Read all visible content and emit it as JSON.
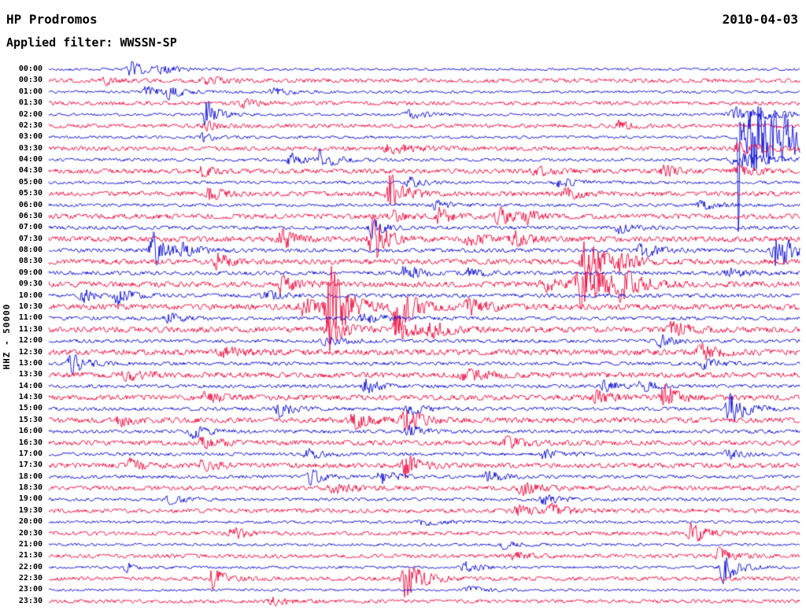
{
  "header": {
    "station": "HP Prodromos",
    "date": "2010-04-03",
    "filter_label": "Applied filter: WWSSN-SP"
  },
  "y_axis_label": "HHZ - 50000",
  "colors": {
    "blue": "#0a0ad2",
    "red": "#ee0a3e",
    "text": "#000000",
    "background": "#ffffff"
  },
  "chart_data": {
    "type": "helicorder",
    "station": "HP Prodromos",
    "date": "2010-04-03",
    "filter": "WWSSN-SP",
    "channel_scale": "HHZ - 50000",
    "minutes_per_line": 30,
    "rows": [
      {
        "label": "00:00",
        "color": "blue",
        "noise": 1.4
      },
      {
        "label": "00:30",
        "color": "red",
        "noise": 2.2
      },
      {
        "label": "01:00",
        "color": "blue",
        "noise": 1.5
      },
      {
        "label": "01:30",
        "color": "red",
        "noise": 2.2
      },
      {
        "label": "02:00",
        "color": "blue",
        "noise": 1.5
      },
      {
        "label": "02:30",
        "color": "red",
        "noise": 2.2
      },
      {
        "label": "03:00",
        "color": "blue",
        "noise": 1.6
      },
      {
        "label": "03:30",
        "color": "red",
        "noise": 2.4
      },
      {
        "label": "04:00",
        "color": "blue",
        "noise": 1.7
      },
      {
        "label": "04:30",
        "color": "red",
        "noise": 2.6
      },
      {
        "label": "05:00",
        "color": "blue",
        "noise": 1.7
      },
      {
        "label": "05:30",
        "color": "red",
        "noise": 2.6
      },
      {
        "label": "06:00",
        "color": "blue",
        "noise": 1.8
      },
      {
        "label": "06:30",
        "color": "red",
        "noise": 2.8
      },
      {
        "label": "07:00",
        "color": "blue",
        "noise": 2.0
      },
      {
        "label": "07:30",
        "color": "red",
        "noise": 3.0
      },
      {
        "label": "08:00",
        "color": "blue",
        "noise": 2.2
      },
      {
        "label": "08:30",
        "color": "red",
        "noise": 3.0
      },
      {
        "label": "09:00",
        "color": "blue",
        "noise": 2.2
      },
      {
        "label": "09:30",
        "color": "red",
        "noise": 3.2
      },
      {
        "label": "10:00",
        "color": "blue",
        "noise": 2.2
      },
      {
        "label": "10:30",
        "color": "red",
        "noise": 3.2
      },
      {
        "label": "11:00",
        "color": "blue",
        "noise": 2.0
      },
      {
        "label": "11:30",
        "color": "red",
        "noise": 3.2
      },
      {
        "label": "12:00",
        "color": "blue",
        "noise": 2.0
      },
      {
        "label": "12:30",
        "color": "red",
        "noise": 3.2
      },
      {
        "label": "13:00",
        "color": "blue",
        "noise": 2.0
      },
      {
        "label": "13:30",
        "color": "red",
        "noise": 3.0
      },
      {
        "label": "14:00",
        "color": "blue",
        "noise": 2.0
      },
      {
        "label": "14:30",
        "color": "red",
        "noise": 3.0
      },
      {
        "label": "15:00",
        "color": "blue",
        "noise": 2.0
      },
      {
        "label": "15:30",
        "color": "red",
        "noise": 3.0
      },
      {
        "label": "16:00",
        "color": "blue",
        "noise": 2.0
      },
      {
        "label": "16:30",
        "color": "red",
        "noise": 2.8
      },
      {
        "label": "17:00",
        "color": "blue",
        "noise": 1.9
      },
      {
        "label": "17:30",
        "color": "red",
        "noise": 2.8
      },
      {
        "label": "18:00",
        "color": "blue",
        "noise": 1.9
      },
      {
        "label": "18:30",
        "color": "red",
        "noise": 2.6
      },
      {
        "label": "19:00",
        "color": "blue",
        "noise": 1.8
      },
      {
        "label": "19:30",
        "color": "red",
        "noise": 2.4
      },
      {
        "label": "20:00",
        "color": "blue",
        "noise": 1.6
      },
      {
        "label": "20:30",
        "color": "red",
        "noise": 2.2
      },
      {
        "label": "21:00",
        "color": "blue",
        "noise": 1.5
      },
      {
        "label": "21:30",
        "color": "red",
        "noise": 2.2
      },
      {
        "label": "22:00",
        "color": "blue",
        "noise": 1.5
      },
      {
        "label": "22:30",
        "color": "red",
        "noise": 2.2
      },
      {
        "label": "23:00",
        "color": "blue",
        "noise": 1.4
      },
      {
        "label": "23:30",
        "color": "red",
        "noise": 2.0
      }
    ],
    "events_format": [
      "row_index",
      "x_fraction_along_line",
      "amplitude_px",
      "width_px"
    ],
    "events": [
      [
        0,
        0.11,
        9,
        8
      ],
      [
        0,
        0.15,
        4,
        10
      ],
      [
        1,
        0.075,
        5,
        6
      ],
      [
        1,
        0.21,
        4,
        12
      ],
      [
        2,
        0.13,
        7,
        6
      ],
      [
        2,
        0.16,
        8,
        7
      ],
      [
        2,
        0.3,
        4,
        10
      ],
      [
        3,
        0.26,
        4,
        8
      ],
      [
        4,
        0.21,
        18,
        6
      ],
      [
        4,
        0.48,
        5,
        10
      ],
      [
        4,
        0.92,
        9,
        20
      ],
      [
        5,
        0.21,
        5,
        8
      ],
      [
        5,
        0.76,
        6,
        6
      ],
      [
        6,
        0.205,
        6,
        6
      ],
      [
        6,
        0.918,
        150,
        1.2
      ],
      [
        6,
        0.94,
        42,
        16
      ],
      [
        6,
        0.975,
        14,
        30
      ],
      [
        7,
        0.455,
        6,
        12
      ],
      [
        7,
        0.92,
        6,
        14
      ],
      [
        8,
        0.322,
        8,
        7
      ],
      [
        8,
        0.361,
        12,
        8
      ],
      [
        8,
        0.92,
        8,
        18
      ],
      [
        9,
        0.205,
        5,
        8
      ],
      [
        9,
        0.65,
        5,
        10
      ],
      [
        9,
        0.82,
        6,
        8
      ],
      [
        9,
        0.92,
        5,
        12
      ],
      [
        10,
        0.48,
        6,
        8
      ],
      [
        10,
        0.68,
        5,
        10
      ],
      [
        11,
        0.215,
        8,
        7
      ],
      [
        11,
        0.455,
        26,
        7
      ],
      [
        11,
        0.69,
        6,
        10
      ],
      [
        12,
        0.515,
        6,
        8
      ],
      [
        12,
        0.87,
        5,
        10
      ],
      [
        13,
        0.455,
        8,
        6
      ],
      [
        13,
        0.52,
        9,
        7
      ],
      [
        13,
        0.6,
        10,
        8
      ],
      [
        13,
        0.635,
        8,
        6
      ],
      [
        14,
        0.43,
        12,
        6
      ],
      [
        14,
        0.76,
        6,
        8
      ],
      [
        15,
        0.31,
        12,
        7
      ],
      [
        15,
        0.431,
        30,
        7
      ],
      [
        15,
        0.56,
        6,
        10
      ],
      [
        15,
        0.62,
        8,
        8
      ],
      [
        16,
        0.139,
        22,
        7
      ],
      [
        16,
        0.18,
        7,
        8
      ],
      [
        16,
        0.79,
        8,
        10
      ],
      [
        16,
        0.97,
        24,
        9
      ],
      [
        17,
        0.225,
        9,
        7
      ],
      [
        17,
        0.716,
        30,
        9
      ],
      [
        17,
        0.76,
        10,
        8
      ],
      [
        18,
        0.475,
        11,
        7
      ],
      [
        18,
        0.56,
        5,
        8
      ],
      [
        18,
        0.905,
        5,
        10
      ],
      [
        19,
        0.31,
        10,
        8
      ],
      [
        19,
        0.66,
        8,
        8
      ],
      [
        19,
        0.711,
        28,
        14
      ],
      [
        19,
        0.763,
        16,
        8
      ],
      [
        20,
        0.045,
        8,
        6
      ],
      [
        20,
        0.092,
        10,
        7
      ],
      [
        20,
        0.29,
        5,
        10
      ],
      [
        21,
        0.34,
        10,
        8
      ],
      [
        21,
        0.375,
        52,
        9
      ],
      [
        21,
        0.464,
        34,
        8
      ],
      [
        21,
        0.56,
        8,
        12
      ],
      [
        22,
        0.16,
        6,
        8
      ],
      [
        22,
        0.42,
        6,
        10
      ],
      [
        23,
        0.375,
        16,
        8
      ],
      [
        23,
        0.464,
        14,
        8
      ],
      [
        23,
        0.51,
        8,
        10
      ],
      [
        23,
        0.83,
        8,
        10
      ],
      [
        24,
        0.37,
        5,
        10
      ],
      [
        24,
        0.815,
        7,
        8
      ],
      [
        25,
        0.23,
        6,
        12
      ],
      [
        25,
        0.87,
        8,
        10
      ],
      [
        26,
        0.03,
        13,
        7
      ],
      [
        26,
        0.873,
        6,
        8
      ],
      [
        27,
        0.105,
        6,
        10
      ],
      [
        27,
        0.555,
        6,
        12
      ],
      [
        28,
        0.422,
        9,
        7
      ],
      [
        28,
        0.74,
        6,
        10
      ],
      [
        28,
        0.79,
        6,
        8
      ],
      [
        29,
        0.205,
        6,
        10
      ],
      [
        29,
        0.73,
        7,
        8
      ],
      [
        29,
        0.82,
        14,
        8
      ],
      [
        30,
        0.307,
        9,
        7
      ],
      [
        30,
        0.48,
        7,
        8
      ],
      [
        30,
        0.908,
        18,
        9
      ],
      [
        31,
        0.095,
        6,
        8
      ],
      [
        31,
        0.407,
        10,
        8
      ],
      [
        31,
        0.475,
        14,
        8
      ],
      [
        32,
        0.192,
        8,
        7
      ],
      [
        32,
        0.48,
        7,
        8
      ],
      [
        33,
        0.205,
        6,
        10
      ],
      [
        33,
        0.61,
        6,
        10
      ],
      [
        34,
        0.345,
        6,
        8
      ],
      [
        34,
        0.66,
        5,
        10
      ],
      [
        34,
        0.905,
        6,
        8
      ],
      [
        35,
        0.108,
        7,
        7
      ],
      [
        35,
        0.205,
        6,
        8
      ],
      [
        35,
        0.475,
        15,
        7
      ],
      [
        36,
        0.349,
        9,
        7
      ],
      [
        36,
        0.443,
        9,
        7
      ],
      [
        36,
        0.585,
        7,
        8
      ],
      [
        37,
        0.38,
        5,
        10
      ],
      [
        37,
        0.63,
        8,
        8
      ],
      [
        38,
        0.16,
        5,
        8
      ],
      [
        38,
        0.66,
        6,
        8
      ],
      [
        39,
        0.625,
        6,
        8
      ],
      [
        39,
        0.67,
        7,
        8
      ],
      [
        40,
        0.5,
        4,
        10
      ],
      [
        41,
        0.245,
        7,
        7
      ],
      [
        41,
        0.857,
        12,
        8
      ],
      [
        42,
        0.605,
        5,
        8
      ],
      [
        43,
        0.62,
        5,
        8
      ],
      [
        43,
        0.893,
        9,
        7
      ],
      [
        44,
        0.103,
        6,
        4
      ],
      [
        44,
        0.555,
        6,
        8
      ],
      [
        44,
        0.899,
        20,
        7
      ],
      [
        45,
        0.218,
        12,
        7
      ],
      [
        45,
        0.475,
        22,
        9
      ],
      [
        46,
        0.56,
        4,
        10
      ],
      [
        47,
        0.3,
        4,
        10
      ]
    ]
  }
}
